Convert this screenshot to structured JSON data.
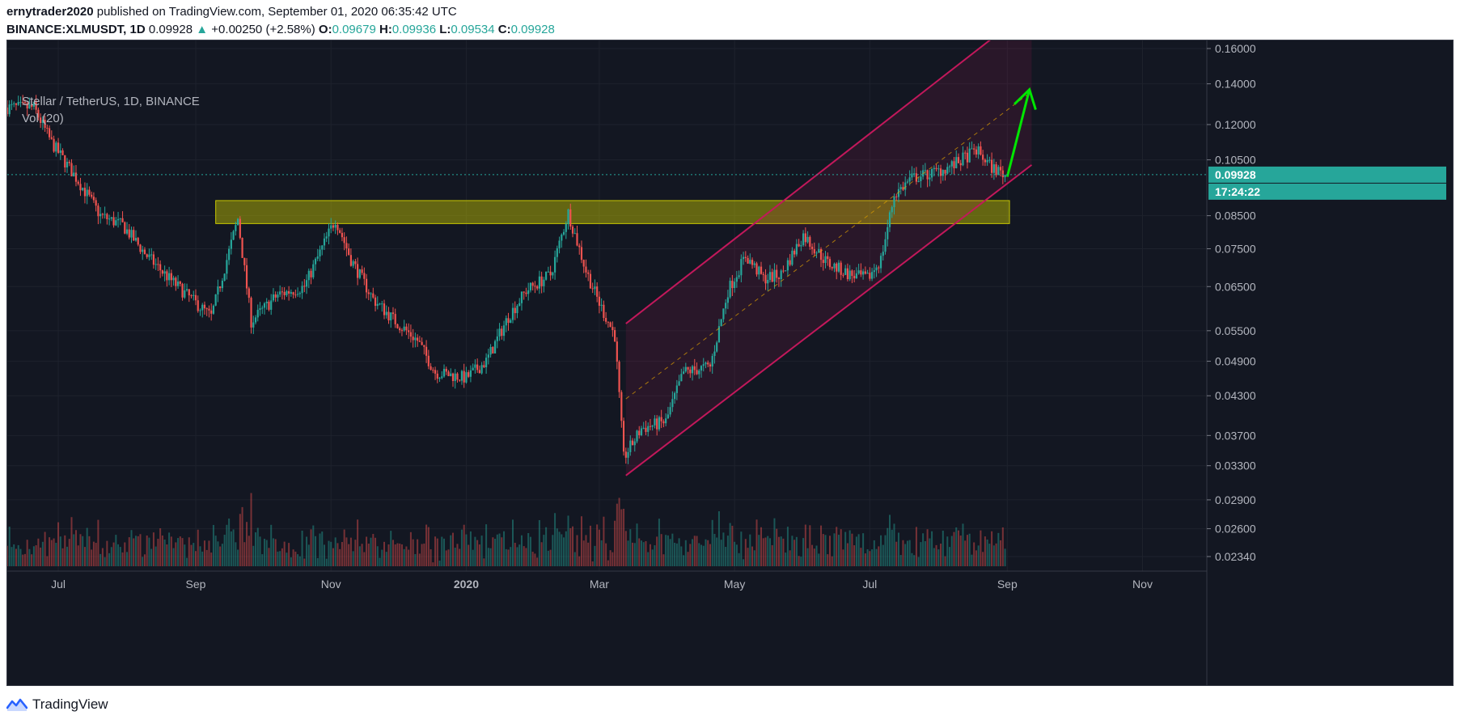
{
  "header": {
    "author": "ernytrader2020",
    "published_text": "published on TradingView.com, September 01, 2020 06:35:42 UTC",
    "symbol": "BINANCE:XLMUSDT, 1D",
    "last": "0.09928",
    "change_arrow": "▲",
    "change": "+0.00250 (+2.58%)",
    "o_label": "O:",
    "o": "0.09679",
    "h_label": "H:",
    "h": "0.09936",
    "l_label": "L:",
    "l": "0.09534",
    "c_label": "C:",
    "c": "0.09928"
  },
  "legend": {
    "title": "Stellar / TetherUS, 1D, BINANCE",
    "volume": "Vol (20)"
  },
  "footer": {
    "brand": "TradingView",
    "logo_icon": "tradingview-logo-icon"
  },
  "colors": {
    "background": "#131722",
    "grid": "#1e222d",
    "up": "#26a69a",
    "down": "#ef5350",
    "channel": "#c2185b",
    "zone": "#c8c800",
    "arrow": "#00e600",
    "price_tag": "#26a69a"
  },
  "chart_data": {
    "type": "candlestick",
    "symbol": "Stellar / TetherUS",
    "interval": "1D",
    "exchange": "BINANCE",
    "y_scale": "log",
    "y_ticks": [
      0.16,
      0.14,
      0.12,
      0.105,
      0.085,
      0.075,
      0.065,
      0.055,
      0.049,
      0.043,
      0.037,
      0.033,
      0.029,
      0.026,
      0.0234
    ],
    "y_tick_labels": [
      "0.16000",
      "0.14000",
      "0.12000",
      "0.10500",
      "0.08500",
      "0.07500",
      "0.06500",
      "0.05500",
      "0.04900",
      "0.04300",
      "0.03700",
      "0.03300",
      "0.02900",
      "0.02600",
      "0.02340"
    ],
    "x_ticks": [
      {
        "label": "Jul",
        "date": "2019-07-01",
        "bold": false
      },
      {
        "label": "Sep",
        "date": "2019-09-01",
        "bold": false
      },
      {
        "label": "Nov",
        "date": "2019-11-01",
        "bold": false
      },
      {
        "label": "2020",
        "date": "2020-01-01",
        "bold": true
      },
      {
        "label": "Mar",
        "date": "2020-03-01",
        "bold": false
      },
      {
        "label": "May",
        "date": "2020-05-01",
        "bold": false
      },
      {
        "label": "Jul",
        "date": "2020-07-01",
        "bold": false
      },
      {
        "label": "Sep",
        "date": "2020-09-01",
        "bold": false
      },
      {
        "label": "Nov",
        "date": "2020-11-01",
        "bold": false
      }
    ],
    "x_range": [
      "2019-06-08",
      "2020-11-30"
    ],
    "last_price": 0.09928,
    "last_price_label": "0.09928",
    "countdown": "17:24:22",
    "close_path": [
      [
        "2019-06-08",
        0.128
      ],
      [
        "2019-06-20",
        0.128
      ],
      [
        "2019-06-28",
        0.112
      ],
      [
        "2019-07-10",
        0.097
      ],
      [
        "2019-07-20",
        0.085
      ],
      [
        "2019-07-30",
        0.082
      ],
      [
        "2019-08-10",
        0.073
      ],
      [
        "2019-08-20",
        0.067
      ],
      [
        "2019-08-30",
        0.062
      ],
      [
        "2019-09-08",
        0.058
      ],
      [
        "2019-09-20",
        0.084
      ],
      [
        "2019-09-26",
        0.057
      ],
      [
        "2019-10-08",
        0.063
      ],
      [
        "2019-10-20",
        0.065
      ],
      [
        "2019-11-03",
        0.084
      ],
      [
        "2019-11-10",
        0.072
      ],
      [
        "2019-11-20",
        0.062
      ],
      [
        "2019-11-30",
        0.057
      ],
      [
        "2019-12-10",
        0.053
      ],
      [
        "2019-12-18",
        0.047
      ],
      [
        "2020-01-01",
        0.046
      ],
      [
        "2020-01-10",
        0.049
      ],
      [
        "2020-01-20",
        0.058
      ],
      [
        "2020-01-28",
        0.064
      ],
      [
        "2020-02-08",
        0.068
      ],
      [
        "2020-02-16",
        0.086
      ],
      [
        "2020-02-24",
        0.069
      ],
      [
        "2020-03-01",
        0.061
      ],
      [
        "2020-03-08",
        0.054
      ],
      [
        "2020-03-12",
        0.034
      ],
      [
        "2020-03-20",
        0.038
      ],
      [
        "2020-03-31",
        0.039
      ],
      [
        "2020-04-08",
        0.047
      ],
      [
        "2020-04-20",
        0.048
      ],
      [
        "2020-04-28",
        0.064
      ],
      [
        "2020-05-06",
        0.073
      ],
      [
        "2020-05-14",
        0.067
      ],
      [
        "2020-05-22",
        0.068
      ],
      [
        "2020-06-01",
        0.079
      ],
      [
        "2020-06-12",
        0.071
      ],
      [
        "2020-06-22",
        0.068
      ],
      [
        "2020-06-30",
        0.067
      ],
      [
        "2020-07-06",
        0.072
      ],
      [
        "2020-07-12",
        0.092
      ],
      [
        "2020-07-20",
        0.098
      ],
      [
        "2020-07-30",
        0.1
      ],
      [
        "2020-08-08",
        0.103
      ],
      [
        "2020-08-18",
        0.109
      ],
      [
        "2020-08-25",
        0.102
      ],
      [
        "2020-08-31",
        0.09928
      ]
    ],
    "volume_scale": [
      0,
      1
    ],
    "annotations": {
      "resistance_zone": {
        "from": "2019-09-10",
        "to": "2020-09-02",
        "low": 0.0825,
        "high": 0.09
      },
      "channel": {
        "lower": {
          "from": [
            "2020-03-13",
            0.0318
          ],
          "to": [
            "2020-09-12",
            0.103
          ]
        },
        "upper": {
          "from": [
            "2020-03-13",
            0.0565
          ],
          "to": [
            "2020-09-02",
            0.175
          ]
        },
        "mid": {
          "from": [
            "2020-03-13",
            0.0425
          ],
          "to": [
            "2020-09-12",
            0.136
          ]
        }
      },
      "target_arrow": {
        "from": [
          "2020-09-01",
          0.0985
        ],
        "to": [
          "2020-09-11",
          0.137
        ]
      }
    }
  }
}
